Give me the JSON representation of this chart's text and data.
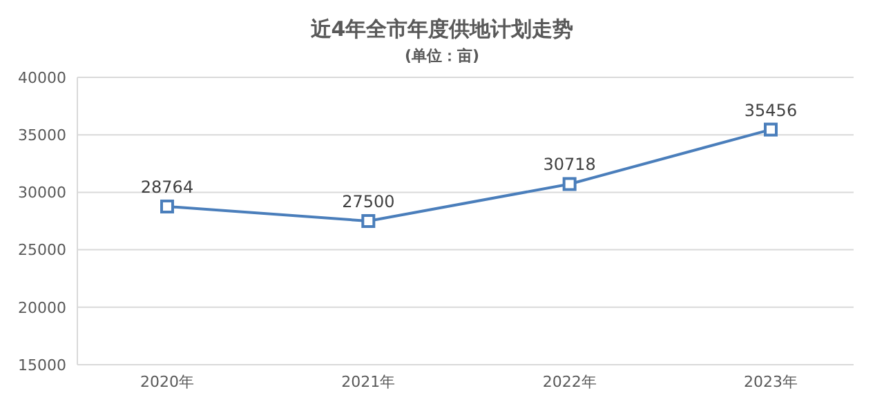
{
  "chart_data": {
    "type": "line",
    "title": "近4年全市年度供地计划走势",
    "subtitle": "(单位：亩)",
    "categories": [
      "2020年",
      "2021年",
      "2022年",
      "2023年"
    ],
    "series": [
      {
        "color": "#4a7ebb",
        "values": [
          28764,
          27500,
          30718,
          35456
        ]
      }
    ],
    "ylim": [
      15000,
      40000
    ],
    "yticks": [
      15000,
      20000,
      25000,
      30000,
      35000,
      40000
    ],
    "grid": "y",
    "marker": "square",
    "line_style": "solid",
    "data_labels": true
  }
}
